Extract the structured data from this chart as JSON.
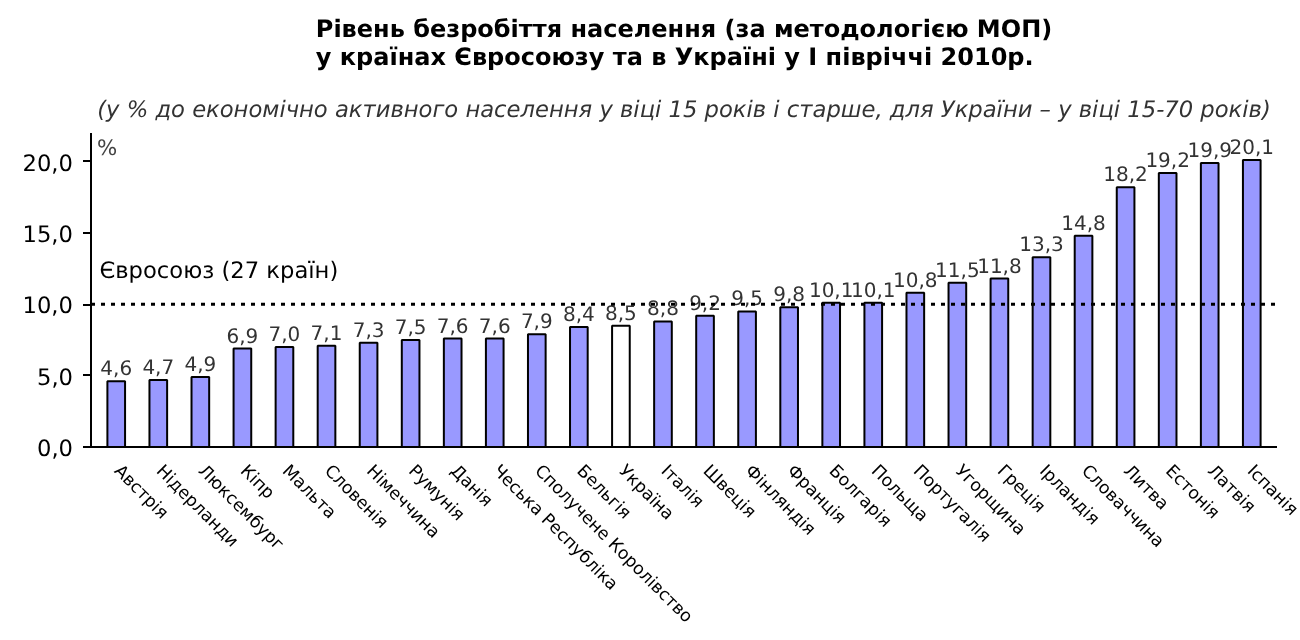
{
  "chart_data": {
    "type": "bar",
    "title": "Рівень безробіття населення (за методологією МОП)\nу країнах Євросоюзу та в Україні у  I півріччі 2010р.",
    "subtitle": "(у % до економічно активного населення у віці 15 років і старше, для України – у віці 15-70 років)",
    "ylabel": "%",
    "categories": [
      "Австрія",
      "Нідерланди",
      "Люксембург",
      "Кіпр",
      "Мальта",
      "Словенія",
      "Німеччина",
      "Румунія",
      "Данія",
      "Чеська Республіка",
      "Сполучене Королівство",
      "Бельгія",
      "Україна",
      "Італія",
      "Швеція",
      "Фінляндія",
      "Франція",
      "Болгарія",
      "Польща",
      "Португалія",
      "Угорщина",
      "Греція",
      "Ірландія",
      "Словаччина",
      "Литва",
      "Естонія",
      "Латвія",
      "Іспанія"
    ],
    "values": [
      4.6,
      4.7,
      4.9,
      6.9,
      7.0,
      7.1,
      7.3,
      7.5,
      7.6,
      7.6,
      7.9,
      8.4,
      8.5,
      8.8,
      9.2,
      9.5,
      9.8,
      10.1,
      10.1,
      10.8,
      11.5,
      11.8,
      13.3,
      14.8,
      18.2,
      19.2,
      19.9,
      20.1
    ],
    "value_labels": [
      "4,6",
      "4,7",
      "4,9",
      "6,9",
      "7,0",
      "7,1",
      "7,3",
      "7,5",
      "7,6",
      "7,6",
      "7,9",
      "8,4",
      "8,5",
      "8,8",
      "9,2",
      "9,5",
      "9,8",
      "10,1",
      "10,1",
      "10,8",
      "11,5",
      "11,8",
      "13,3",
      "14,8",
      "18,2",
      "19,2",
      "19,9",
      "20,1"
    ],
    "colors": [
      "#9999ff",
      "#9999ff",
      "#9999ff",
      "#9999ff",
      "#9999ff",
      "#9999ff",
      "#9999ff",
      "#9999ff",
      "#9999ff",
      "#9999ff",
      "#9999ff",
      "#9999ff",
      "#ffffff",
      "#9999ff",
      "#9999ff",
      "#9999ff",
      "#9999ff",
      "#9999ff",
      "#9999ff",
      "#9999ff",
      "#9999ff",
      "#9999ff",
      "#9999ff",
      "#9999ff",
      "#9999ff",
      "#9999ff",
      "#9999ff",
      "#9999ff"
    ],
    "ylim": [
      0,
      22
    ],
    "yticks": [
      {
        "value": 0,
        "label": "0,0"
      },
      {
        "value": 5,
        "label": "5,0"
      },
      {
        "value": 10,
        "label": "10,0"
      },
      {
        "value": 15,
        "label": "15,0"
      },
      {
        "value": 20,
        "label": "20,0"
      }
    ],
    "ref_lines": [
      {
        "axis": "y",
        "value": 10,
        "label": "Євросоюз (27 країн)",
        "color": "#000000",
        "line_style": "dotted"
      }
    ],
    "grid": false
  }
}
